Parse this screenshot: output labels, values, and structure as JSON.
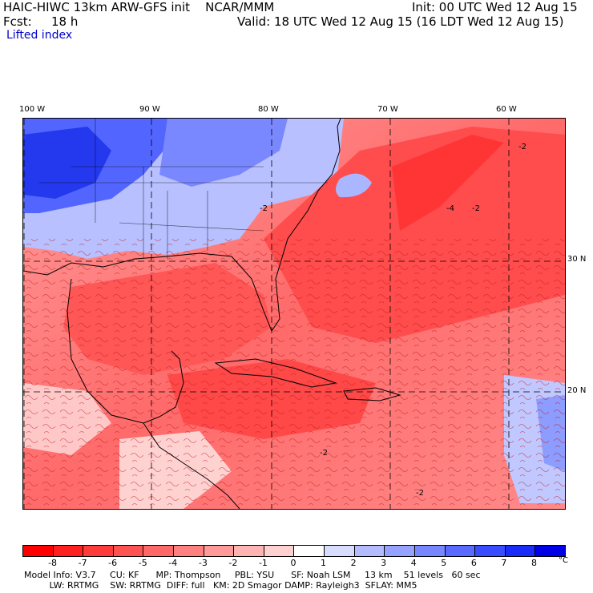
{
  "header": {
    "title": "HAIC-HIWC 13km ARW-GFS init    NCAR/MMM",
    "init": "Init: 00 UTC Wed 12 Aug 15",
    "fcst_label": "Fcst:",
    "fcst_value": "18 h",
    "valid": "Valid: 18 UTC Wed 12 Aug 15 (16 LDT Wed 12 Aug 15)",
    "field": "Lifted index"
  },
  "map": {
    "lon_labels": [
      "100 W",
      "90 W",
      "80 W",
      "70 W",
      "60 W"
    ],
    "lat_labels": [
      "30 N",
      "20 N"
    ],
    "contour_labels": [
      "-2",
      "-4",
      "-2",
      "-2",
      "-2",
      "-2"
    ],
    "colors": {
      "strong_negative": "#ff3030",
      "negative": "#ff8a8a",
      "weak_negative": "#ffc8c8",
      "positive": "#8c9cff",
      "strong_positive": "#2a3de8"
    }
  },
  "colorbar": {
    "labels": [
      "-8",
      "-7",
      "-6",
      "-5",
      "-4",
      "-3",
      "-2",
      "-1",
      "0",
      "1",
      "2",
      "3",
      "4",
      "5",
      "6",
      "7",
      "8"
    ],
    "unit": "°C",
    "colors": [
      "#ff0000",
      "#ff2020",
      "#ff3c3c",
      "#ff5252",
      "#ff6868",
      "#ff8080",
      "#ff9a9a",
      "#ffb4b4",
      "#ffd0d0",
      "#ffffff",
      "#d8dcff",
      "#b4bcff",
      "#96a2ff",
      "#7886ff",
      "#5a6aff",
      "#3a4cff",
      "#1a2cf8",
      "#0000e6"
    ]
  },
  "model_info": {
    "line1": "Model Info: V3.7     CU: KF      MP: Thompson     PBL: YSU      SF: Noah LSM     13 km    51 levels   60 sec",
    "line2": "         LW: RRTMG    SW: RRTMG  DIFF: full   KM: 2D Smagor DAMP: Rayleigh3  SFLAY: MM5"
  }
}
